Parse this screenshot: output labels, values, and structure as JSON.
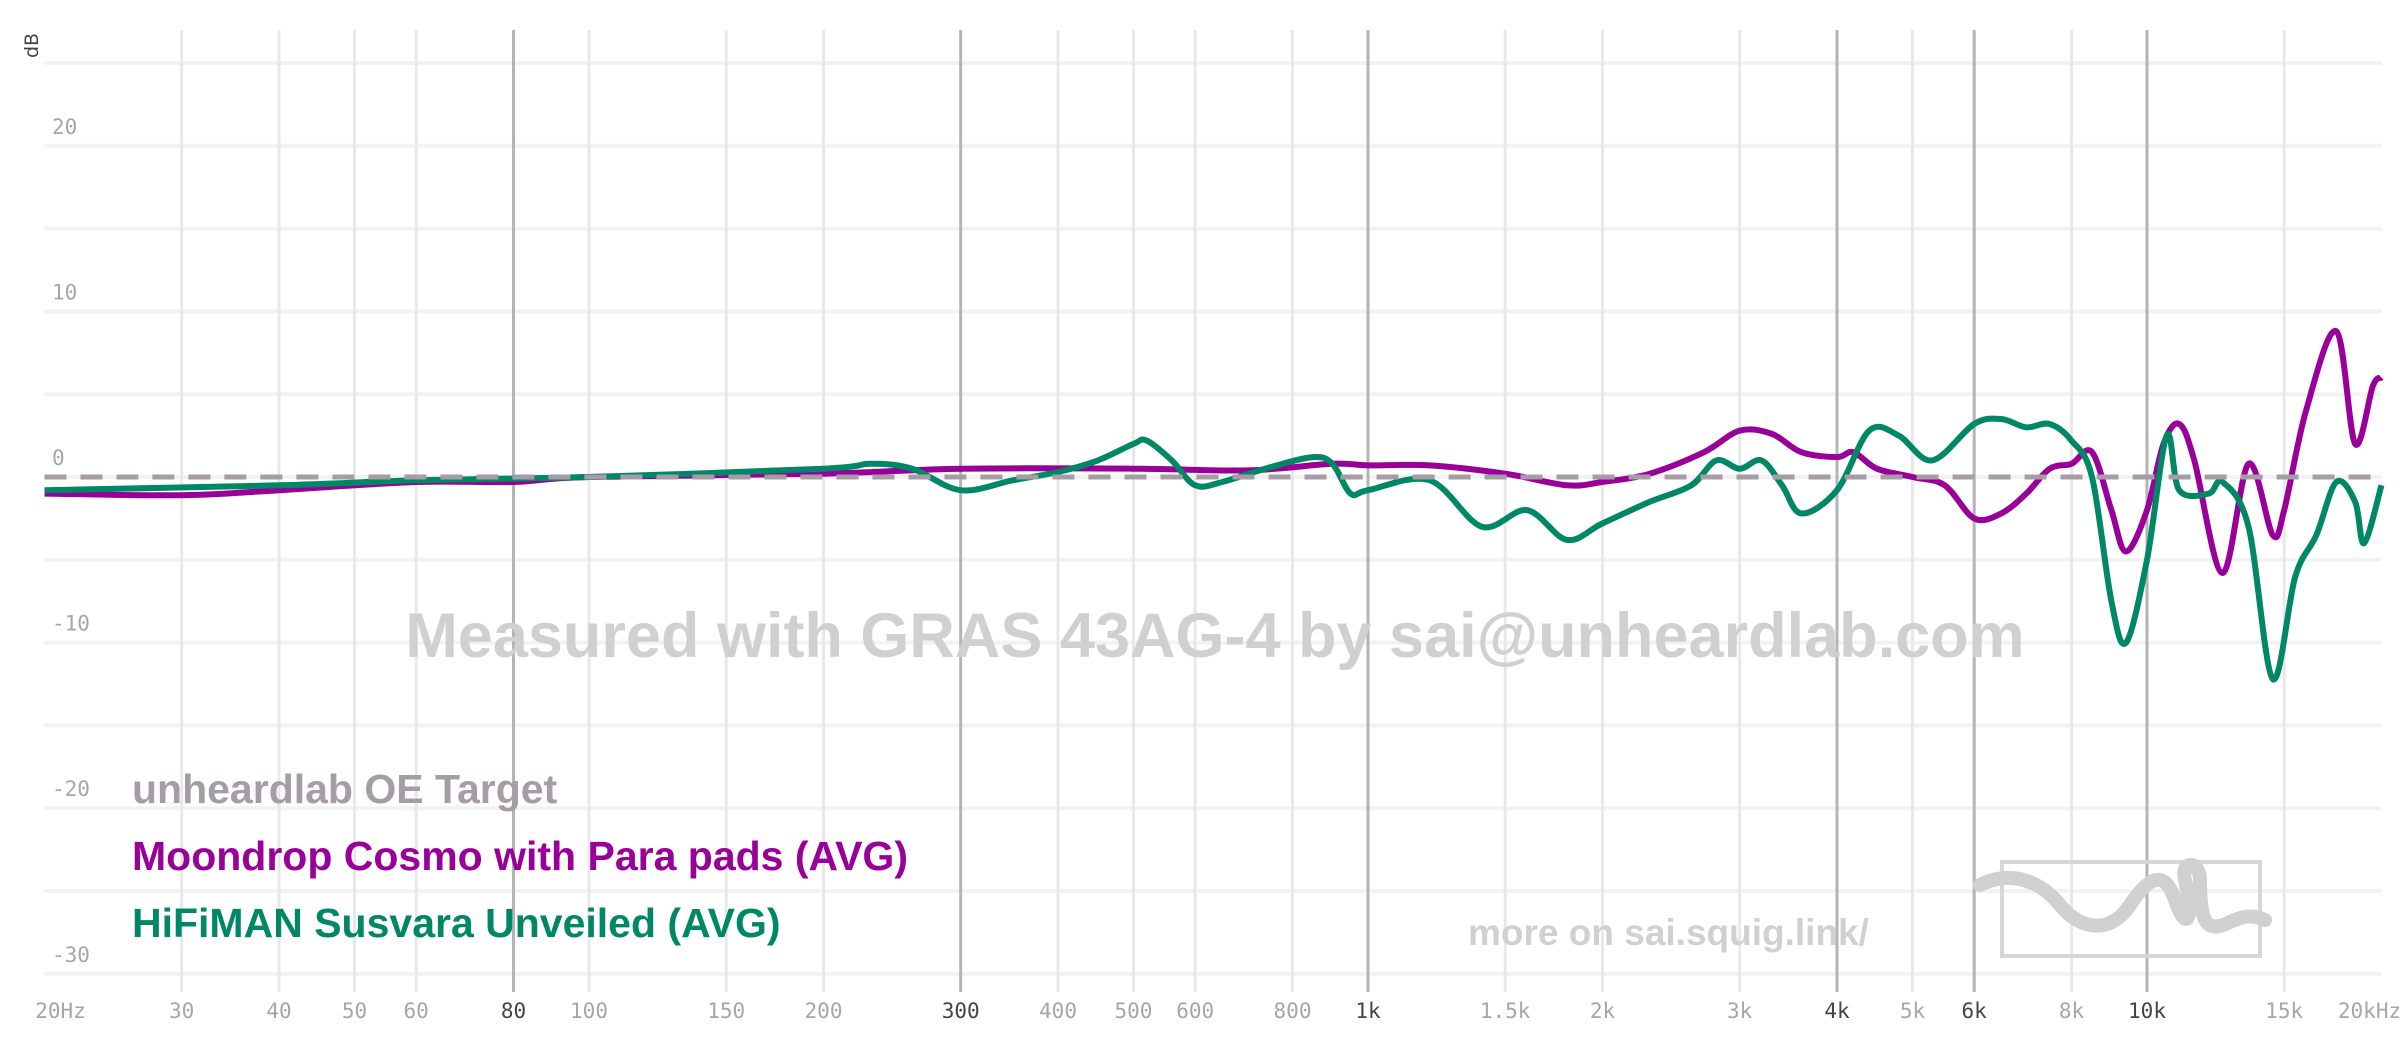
{
  "chart_data": {
    "type": "line",
    "ylabel": "dB",
    "xlabel": "",
    "xscale": "log",
    "xlim": [
      20,
      20000
    ],
    "ylim": [
      -32,
      27
    ],
    "grid": true,
    "y_ticks": [
      20,
      10,
      0,
      -10,
      -20,
      -30
    ],
    "y_tick_labels": [
      "20",
      "10",
      "0",
      "-10",
      "-20",
      "-30"
    ],
    "x_ticks": [
      {
        "f": 20,
        "label": "20Hz",
        "major": false
      },
      {
        "f": 30,
        "label": "30",
        "major": false
      },
      {
        "f": 40,
        "label": "40",
        "major": false
      },
      {
        "f": 50,
        "label": "50",
        "major": false
      },
      {
        "f": 60,
        "label": "60",
        "major": false
      },
      {
        "f": 80,
        "label": "80",
        "major": true
      },
      {
        "f": 100,
        "label": "100",
        "major": false
      },
      {
        "f": 150,
        "label": "150",
        "major": false
      },
      {
        "f": 200,
        "label": "200",
        "major": false
      },
      {
        "f": 300,
        "label": "300",
        "major": true
      },
      {
        "f": 400,
        "label": "400",
        "major": false
      },
      {
        "f": 500,
        "label": "500",
        "major": false
      },
      {
        "f": 600,
        "label": "600",
        "major": false
      },
      {
        "f": 800,
        "label": "800",
        "major": false
      },
      {
        "f": 1000,
        "label": "1k",
        "major": true
      },
      {
        "f": 1500,
        "label": "1.5k",
        "major": false
      },
      {
        "f": 2000,
        "label": "2k",
        "major": false
      },
      {
        "f": 3000,
        "label": "3k",
        "major": false
      },
      {
        "f": 4000,
        "label": "4k",
        "major": true
      },
      {
        "f": 5000,
        "label": "5k",
        "major": false
      },
      {
        "f": 6000,
        "label": "6k",
        "major": true
      },
      {
        "f": 8000,
        "label": "8k",
        "major": false
      },
      {
        "f": 10000,
        "label": "10k",
        "major": true
      },
      {
        "f": 15000,
        "label": "15k",
        "major": false
      },
      {
        "f": 20000,
        "label": "20kHz",
        "major": false
      }
    ],
    "series": [
      {
        "name": "unheardlab OE Target",
        "color": "#a59ca6",
        "dashed": true,
        "points": [
          [
            20,
            0
          ],
          [
            20000,
            0
          ]
        ]
      },
      {
        "name": "Moondrop Cosmo with Para pads (AVG)",
        "color": "#990099",
        "dashed": false,
        "points": [
          [
            20,
            -1
          ],
          [
            30,
            -1.1
          ],
          [
            40,
            -0.8
          ],
          [
            60,
            -0.3
          ],
          [
            80,
            -0.3
          ],
          [
            100,
            0
          ],
          [
            200,
            0.2
          ],
          [
            300,
            0.5
          ],
          [
            500,
            0.5
          ],
          [
            700,
            0.4
          ],
          [
            900,
            0.8
          ],
          [
            1000,
            0.7
          ],
          [
            1200,
            0.7
          ],
          [
            1500,
            0.2
          ],
          [
            1800,
            -0.5
          ],
          [
            2000,
            -0.3
          ],
          [
            2300,
            0.2
          ],
          [
            2700,
            1.5
          ],
          [
            3000,
            2.8
          ],
          [
            3300,
            2.6
          ],
          [
            3600,
            1.5
          ],
          [
            4000,
            1.2
          ],
          [
            4200,
            1.5
          ],
          [
            4500,
            0.5
          ],
          [
            5000,
            0
          ],
          [
            5500,
            -0.5
          ],
          [
            6000,
            -2.5
          ],
          [
            6500,
            -2.2
          ],
          [
            7000,
            -1
          ],
          [
            7500,
            0.5
          ],
          [
            8000,
            0.8
          ],
          [
            8500,
            1.5
          ],
          [
            9000,
            -2
          ],
          [
            9400,
            -4.5
          ],
          [
            10000,
            -2
          ],
          [
            10500,
            2
          ],
          [
            11000,
            3.2
          ],
          [
            11500,
            1
          ],
          [
            12500,
            -5.8
          ],
          [
            13500,
            0.8
          ],
          [
            14500,
            -3.5
          ],
          [
            15000,
            -2
          ],
          [
            16000,
            4
          ],
          [
            17500,
            8.8
          ],
          [
            18500,
            2
          ],
          [
            19500,
            5.5
          ],
          [
            20000,
            6
          ]
        ]
      },
      {
        "name": "HiFiMAN Susvara Unveiled (AVG)",
        "color": "#008866",
        "dashed": false,
        "points": [
          [
            20,
            -0.8
          ],
          [
            40,
            -0.5
          ],
          [
            60,
            -0.2
          ],
          [
            100,
            0
          ],
          [
            200,
            0.5
          ],
          [
            230,
            0.8
          ],
          [
            260,
            0.5
          ],
          [
            300,
            -0.8
          ],
          [
            350,
            -0.2
          ],
          [
            400,
            0.3
          ],
          [
            450,
            1
          ],
          [
            500,
            2
          ],
          [
            520,
            2.2
          ],
          [
            560,
            1
          ],
          [
            600,
            -0.5
          ],
          [
            650,
            -0.3
          ],
          [
            750,
            0.6
          ],
          [
            850,
            1.2
          ],
          [
            900,
            0.8
          ],
          [
            950,
            -1
          ],
          [
            1000,
            -0.8
          ],
          [
            1200,
            -0.2
          ],
          [
            1400,
            -3
          ],
          [
            1600,
            -2
          ],
          [
            1800,
            -3.8
          ],
          [
            2000,
            -2.8
          ],
          [
            2300,
            -1.5
          ],
          [
            2600,
            -0.5
          ],
          [
            2800,
            1
          ],
          [
            3000,
            0.5
          ],
          [
            3200,
            1
          ],
          [
            3400,
            -0.5
          ],
          [
            3600,
            -2.2
          ],
          [
            4000,
            -0.8
          ],
          [
            4400,
            2.8
          ],
          [
            4800,
            2.5
          ],
          [
            5300,
            1
          ],
          [
            6000,
            3.2
          ],
          [
            6500,
            3.5
          ],
          [
            7000,
            3
          ],
          [
            7500,
            3.2
          ],
          [
            8000,
            2.2
          ],
          [
            8500,
            0
          ],
          [
            9000,
            -7.5
          ],
          [
            9400,
            -10
          ],
          [
            10000,
            -5
          ],
          [
            10600,
            2.5
          ],
          [
            11000,
            -0.8
          ],
          [
            12000,
            -1
          ],
          [
            12500,
            -0.3
          ],
          [
            13500,
            -3
          ],
          [
            14500,
            -12.2
          ],
          [
            15500,
            -6
          ],
          [
            16500,
            -3.5
          ],
          [
            17500,
            -0.3
          ],
          [
            18500,
            -1.5
          ],
          [
            19000,
            -4
          ],
          [
            20000,
            -0.5
          ]
        ]
      }
    ],
    "legend_placement": "bottom-left",
    "annotations": {
      "watermark": "Measured with GRAS 43AG-4 by sai@unheardlab.com",
      "site": "more on sai.squig.link/"
    }
  }
}
